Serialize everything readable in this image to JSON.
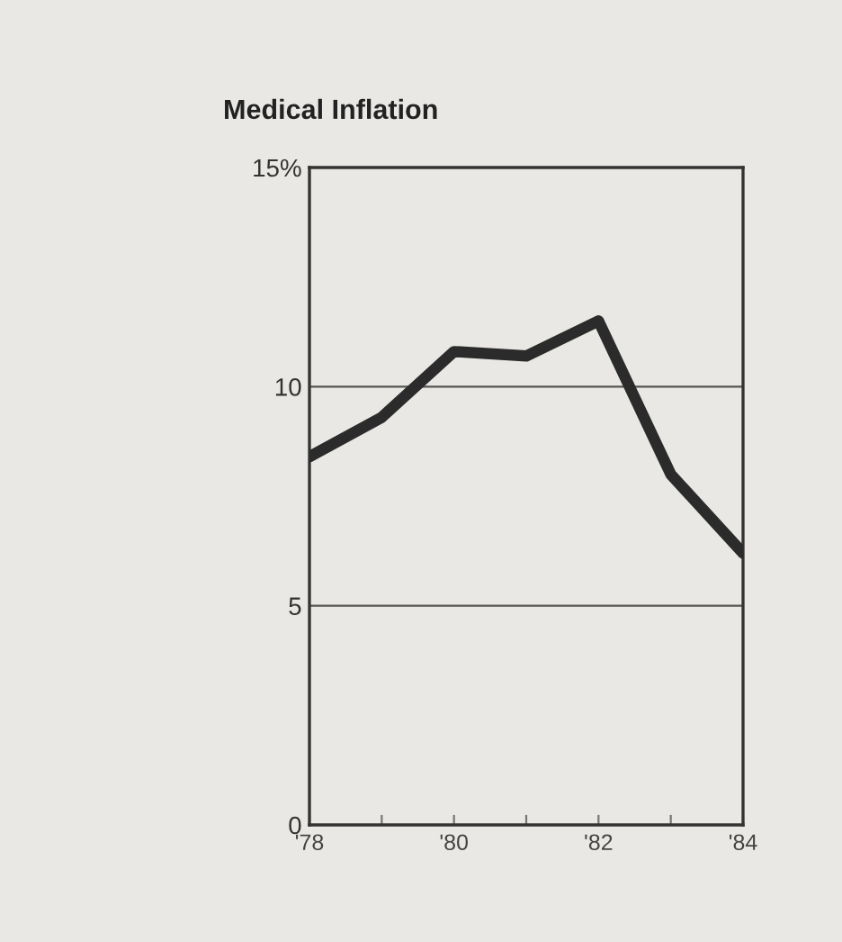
{
  "chart_data": {
    "type": "line",
    "title": "Medical Inflation",
    "x": [
      1978,
      1979,
      1980,
      1981,
      1982,
      1983,
      1984
    ],
    "series": [
      {
        "color": "#2b2b2b",
        "values": [
          8.4,
          9.3,
          10.8,
          10.7,
          11.5,
          8.0,
          6.2
        ]
      }
    ],
    "xlim": [
      1978,
      1984
    ],
    "xticks": [
      {
        "value": 1978,
        "label": "'78"
      },
      {
        "value": 1979,
        "label": null
      },
      {
        "value": 1980,
        "label": "'80"
      },
      {
        "value": 1981,
        "label": null
      },
      {
        "value": 1982,
        "label": "'82"
      },
      {
        "value": 1983,
        "label": null
      },
      {
        "value": 1984,
        "label": "'84"
      }
    ],
    "ylim": [
      0,
      15
    ],
    "yticks": [
      0,
      5,
      10,
      {
        "value": 15,
        "label": "15%"
      }
    ],
    "grid": "y",
    "marker": "none",
    "line_style": "solid"
  }
}
